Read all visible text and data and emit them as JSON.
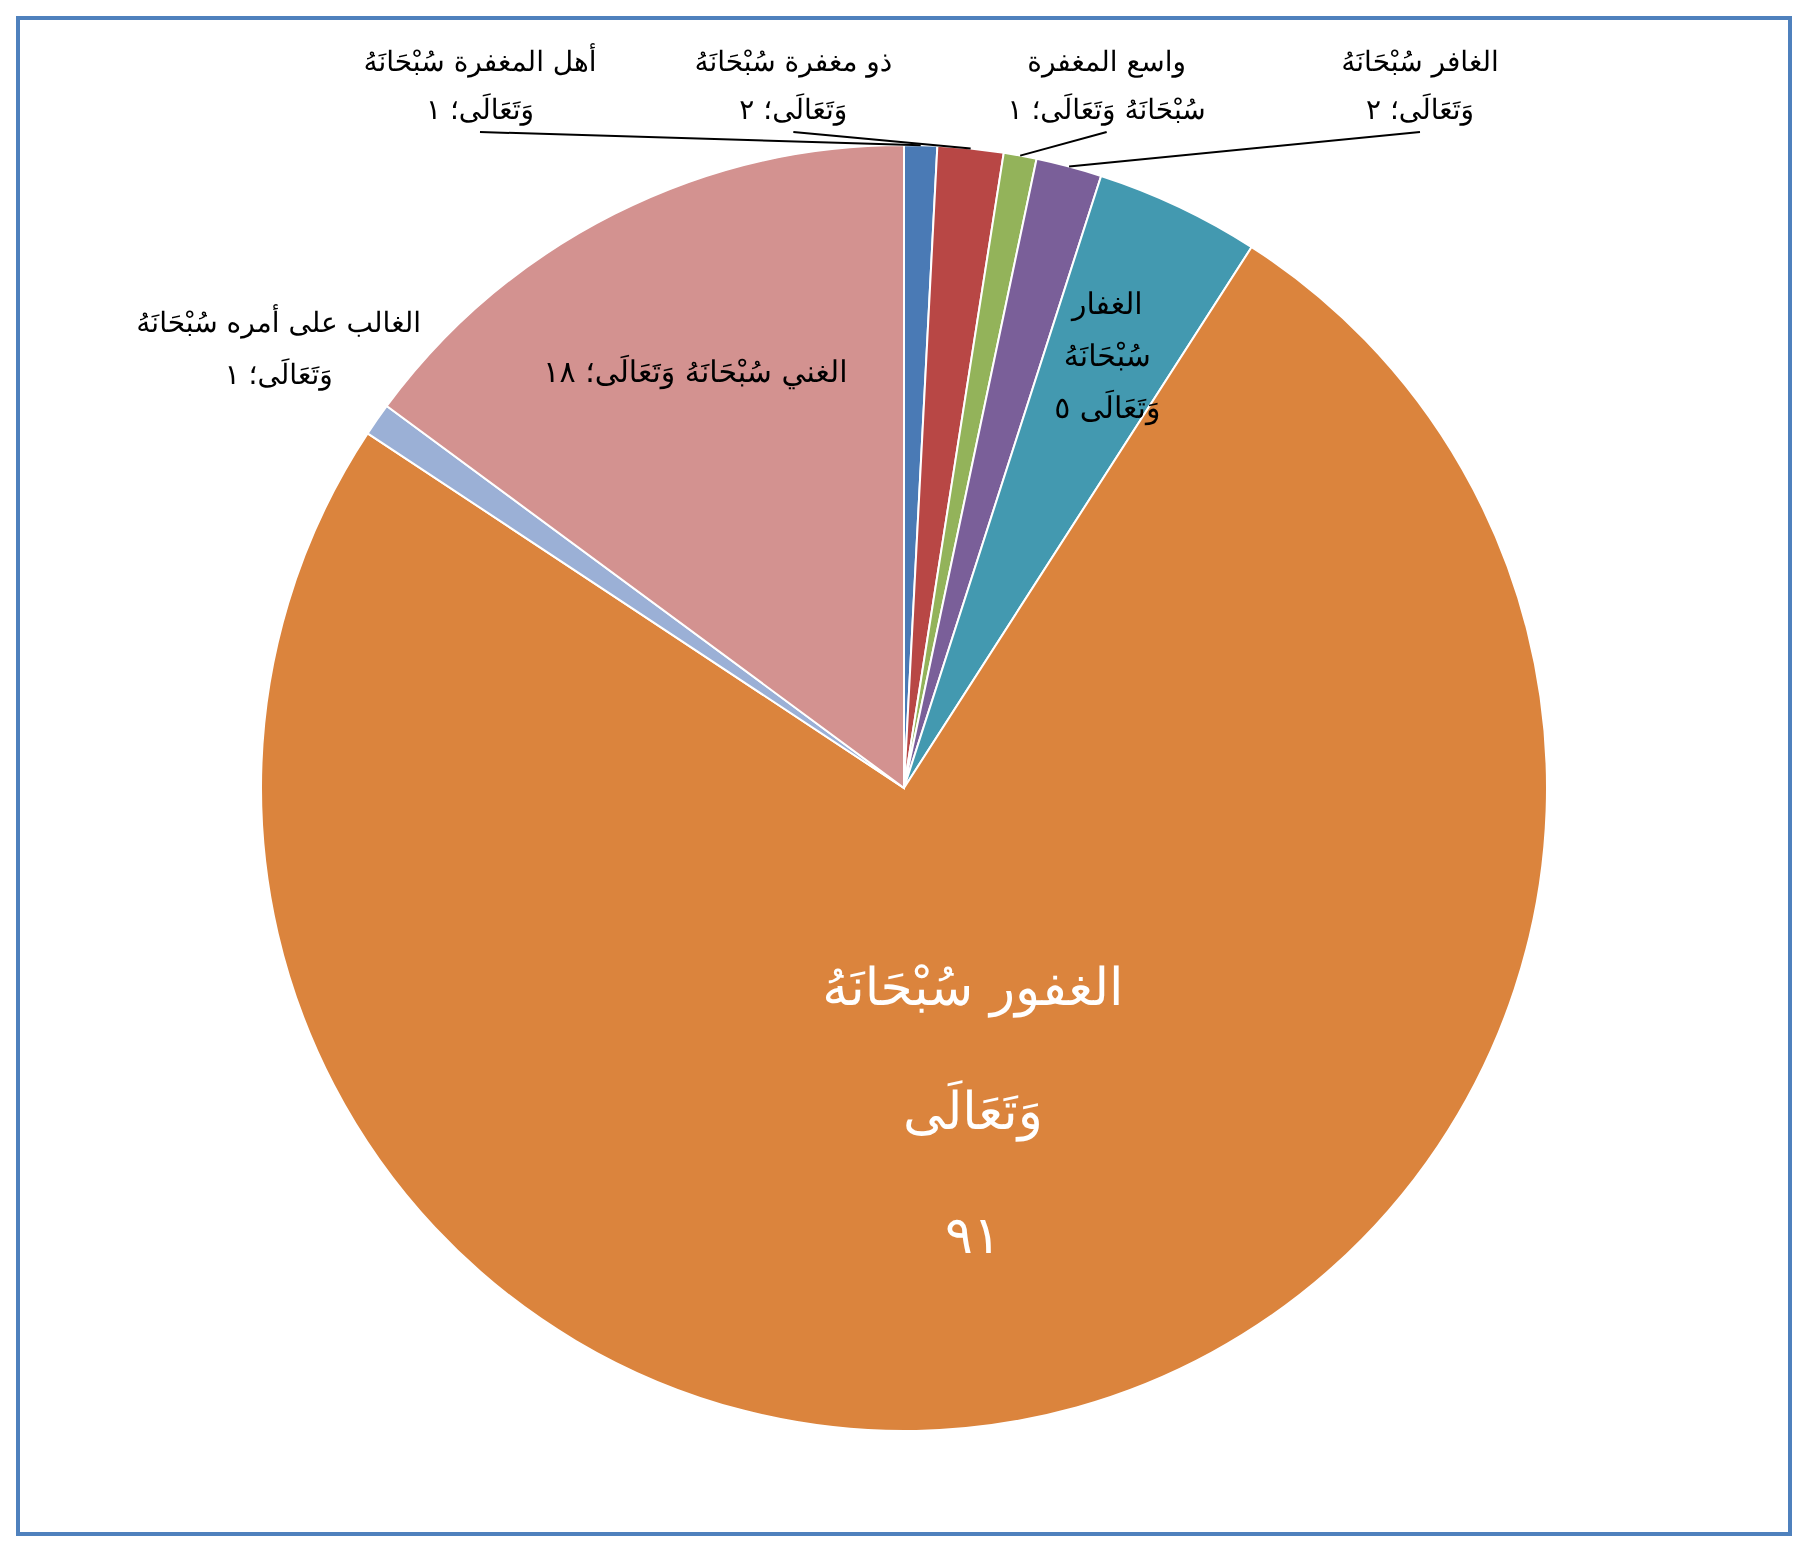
{
  "chart_data": {
    "type": "pie",
    "categories": [
      "أهل المغفرة سُبْحَانَهُ وَتَعَالَى؛",
      "ذو مغفرة سُبْحَانَهُ وَتَعَالَى؛",
      "واسع المغفرة سُبْحَانَهُ وَتَعَالَى؛",
      "الغافر سُبْحَانَهُ وَتَعَالَى؛",
      "الغفار سُبْحَانَهُ وَتَعَالَى",
      "الغفور سُبْحَانَهُ وَتَعَالَى",
      "الغالب على أمره سُبْحَانَهُ وَتَعَالَى؛",
      "الغني سُبْحَانَهُ وَتَعَالَى؛"
    ],
    "values": [
      1,
      2,
      1,
      2,
      5,
      91,
      1,
      18
    ],
    "value_labels": [
      "١",
      "٢",
      "١",
      "٢",
      "٥",
      "٩١",
      "١",
      "١٨"
    ],
    "colors": [
      "#4a7ab5",
      "#b84745",
      "#93b35a",
      "#7a5f99",
      "#4399b0",
      "#db843d",
      "#9bb0d6",
      "#d39290"
    ],
    "legend": false
  }
}
